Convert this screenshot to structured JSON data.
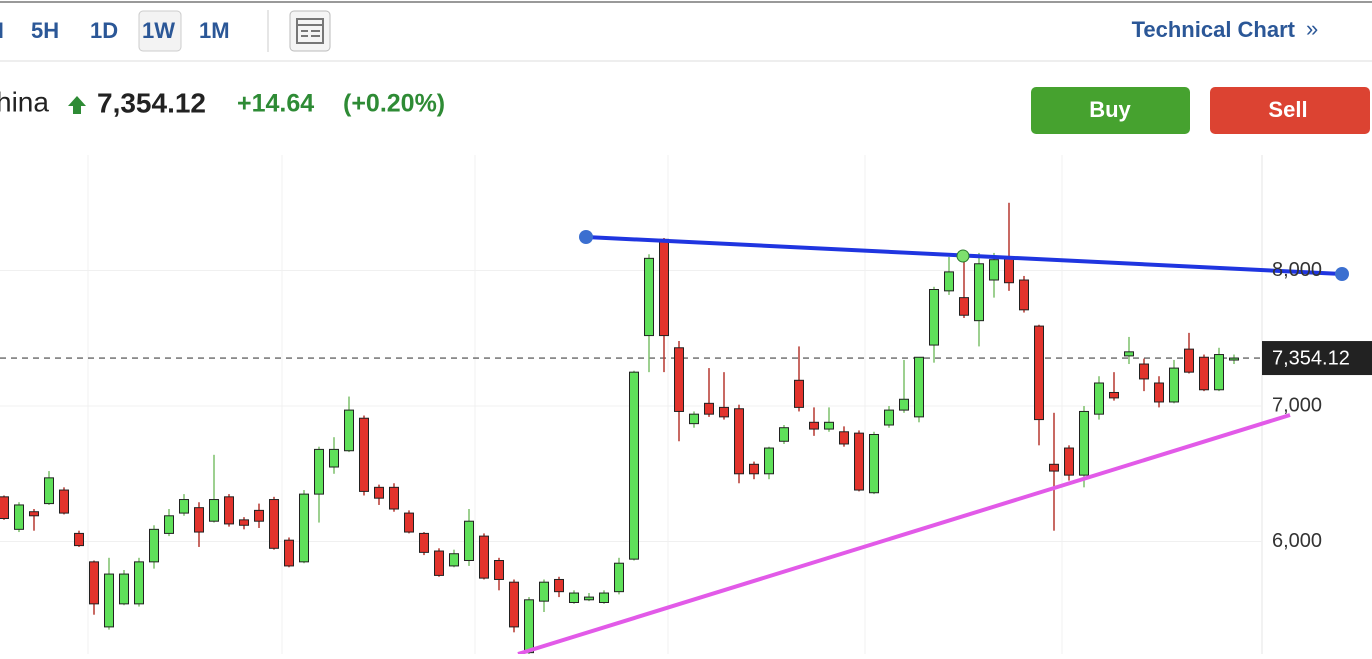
{
  "toolbar": {
    "intervals": [
      "H",
      "5H",
      "1D",
      "1W",
      "1M"
    ],
    "active_interval": 3,
    "link": "Technical Chart",
    "link_icon": "»"
  },
  "quote": {
    "name": "hina",
    "price": "7,354.12",
    "change": "+14.64",
    "change_pct": "(+0.20%)"
  },
  "buttons": [
    "Buy",
    "Sell"
  ],
  "chart_data": {
    "type": "candlestick",
    "up_color": "#5fe05a",
    "down_color": "#e2332c",
    "grid": true,
    "ylim": [
      5170,
      8860
    ],
    "yticks": [
      {
        "value": 6000,
        "label": "6,000"
      },
      {
        "value": 7000,
        "label": "7,000"
      },
      {
        "value": 8000,
        "label": "8,000"
      }
    ],
    "last": {
      "value": 7354.12,
      "label": "7,354.12"
    },
    "open": [
      6330,
      6090,
      6220,
      6280,
      6380,
      6060,
      5850,
      5370,
      5540,
      5540,
      5850,
      6060,
      6210,
      6250,
      6150,
      6330,
      6160,
      6230,
      6310,
      6010,
      5850,
      6350,
      6550,
      6670,
      6910,
      6400,
      6400,
      6210,
      6060,
      5930,
      5820,
      5860,
      6040,
      5860,
      5700,
      5180,
      5560,
      5720,
      5550,
      5570,
      5550,
      5630,
      5870,
      7520,
      8230,
      7430,
      6870,
      7020,
      6990,
      6980,
      6570,
      6500,
      6740,
      7190,
      6880,
      6830,
      6810,
      6800,
      6360,
      6860,
      6970,
      6920,
      7450,
      7850,
      7800,
      7630,
      7930,
      8090,
      7930,
      7590,
      6570,
      6690,
      6490,
      6940,
      7100,
      7370,
      7310,
      7170,
      7030,
      7420,
      7360,
      7120,
      7340
    ],
    "high": [
      6340,
      6290,
      6240,
      6520,
      6400,
      6080,
      5860,
      5880,
      5790,
      5880,
      6120,
      6240,
      6350,
      6290,
      6640,
      6350,
      6180,
      6280,
      6330,
      6030,
      6380,
      6700,
      6770,
      7070,
      6930,
      6420,
      6430,
      6230,
      6070,
      5950,
      5940,
      6240,
      6060,
      5880,
      5720,
      5590,
      5720,
      5740,
      5640,
      5620,
      5640,
      5880,
      7260,
      8120,
      8240,
      7480,
      6960,
      7280,
      7250,
      7010,
      6590,
      6700,
      6860,
      7440,
      6990,
      6990,
      6850,
      6820,
      6810,
      7000,
      7340,
      7360,
      7880,
      8100,
      8090,
      8130,
      8130,
      8500,
      7960,
      7600,
      6950,
      6710,
      7000,
      7220,
      7250,
      7510,
      7350,
      7220,
      7340,
      7540,
      7380,
      7430,
      7380
    ],
    "low": [
      6160,
      6070,
      6080,
      6270,
      6200,
      5960,
      5460,
      5350,
      5530,
      5520,
      5800,
      6040,
      6190,
      5960,
      6140,
      6110,
      6090,
      6100,
      5940,
      5810,
      5840,
      6140,
      6500,
      6660,
      6340,
      6270,
      6220,
      6060,
      5900,
      5740,
      5810,
      5820,
      5720,
      5640,
      5330,
      5170,
      5480,
      5590,
      5540,
      5560,
      5540,
      5610,
      5860,
      7250,
      7250,
      6740,
      6840,
      6920,
      6900,
      6430,
      6460,
      6460,
      6720,
      6960,
      6780,
      6810,
      6700,
      6370,
      6350,
      6840,
      6950,
      6880,
      7320,
      7820,
      7650,
      7440,
      7800,
      7850,
      7690,
      6710,
      6080,
      6450,
      6400,
      6900,
      7040,
      7310,
      7110,
      6990,
      7020,
      7240,
      7110,
      7110,
      7310
    ],
    "close": [
      6170,
      6270,
      6190,
      6470,
      6210,
      5970,
      5540,
      5760,
      5760,
      5850,
      6090,
      6190,
      6310,
      6070,
      6310,
      6130,
      6120,
      6150,
      5950,
      5820,
      6350,
      6680,
      6680,
      6970,
      6370,
      6320,
      6240,
      6070,
      5920,
      5750,
      5910,
      6150,
      5730,
      5720,
      5370,
      5570,
      5700,
      5630,
      5620,
      5590,
      5620,
      5840,
      7250,
      8090,
      7520,
      6960,
      6940,
      6940,
      6920,
      6500,
      6500,
      6690,
      6840,
      6990,
      6830,
      6880,
      6720,
      6380,
      6790,
      6970,
      7050,
      7360,
      7860,
      7990,
      7670,
      8050,
      8080,
      7910,
      7710,
      6900,
      6520,
      6490,
      6960,
      7170,
      7060,
      7400,
      7200,
      7030,
      7280,
      7250,
      7120,
      7380,
      7354.12
    ]
  }
}
